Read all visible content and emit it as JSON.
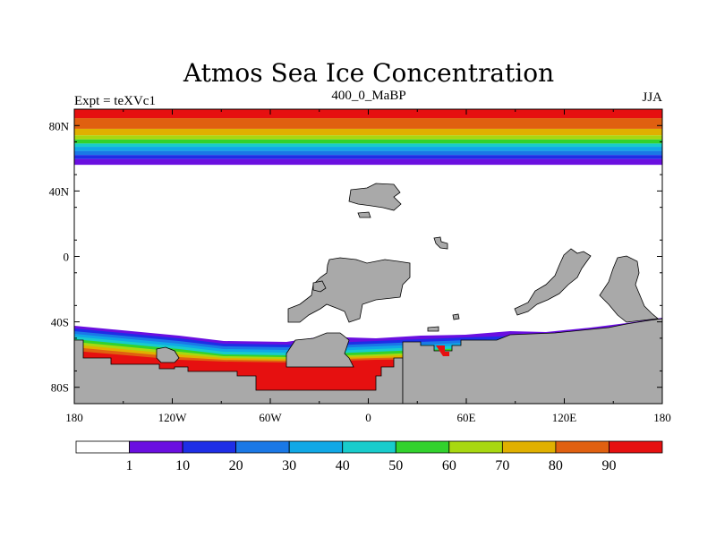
{
  "chart_data": {
    "type": "heatmap",
    "title": "Atmos Sea Ice Concentration",
    "subtitle": "400_0_MaBP",
    "left_label": "Expt = teXVc1",
    "right_label": "JJA",
    "x_ticks": [
      "180",
      "120W",
      "60W",
      "0",
      "60E",
      "120E",
      "180"
    ],
    "x_tick_values": [
      -180,
      -120,
      -60,
      0,
      60,
      120,
      180
    ],
    "y_ticks": [
      "80N",
      "40N",
      "0",
      "40S",
      "80S"
    ],
    "y_tick_values": [
      80,
      40,
      0,
      -40,
      -80
    ],
    "xlim": [
      -180,
      180
    ],
    "ylim": [
      -90,
      90
    ],
    "colorbar": {
      "labels": [
        "1",
        "10",
        "20",
        "30",
        "40",
        "50",
        "60",
        "70",
        "80",
        "90"
      ],
      "colors": [
        "#ffffff",
        "#6a0fe0",
        "#1e2ee6",
        "#1a78e6",
        "#10a8e6",
        "#18cccc",
        "#32d22d",
        "#a8d810",
        "#e0b000",
        "#e06010",
        "#e61010"
      ]
    },
    "land_color": "#a9a9a9",
    "north_ice_bands": [
      {
        "lat_from": 90,
        "lat_to": 84.5,
        "level": 10
      },
      {
        "lat_from": 84.5,
        "lat_to": 78,
        "level": 9
      },
      {
        "lat_from": 78,
        "lat_to": 74,
        "level": 8
      },
      {
        "lat_from": 74,
        "lat_to": 71.5,
        "level": 7
      },
      {
        "lat_from": 71.5,
        "lat_to": 69,
        "level": 6
      },
      {
        "lat_from": 69,
        "lat_to": 67,
        "level": 5
      },
      {
        "lat_from": 67,
        "lat_to": 64.5,
        "level": 4
      },
      {
        "lat_from": 64.5,
        "lat_to": 62,
        "level": 3
      },
      {
        "lat_from": 62,
        "lat_to": 59.5,
        "level": 2
      },
      {
        "lat_from": 59.5,
        "lat_to": 56,
        "level": 1
      }
    ]
  }
}
